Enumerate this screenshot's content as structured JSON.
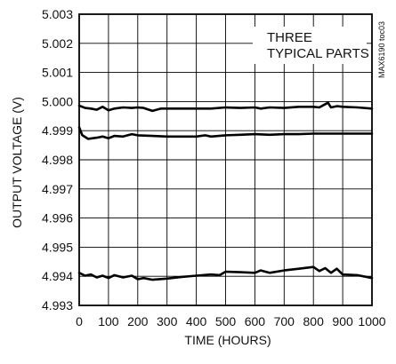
{
  "chart_data": {
    "type": "line",
    "title": "",
    "xlabel": "TIME (HOURS)",
    "ylabel": "OUTPUT VOLTAGE (V)",
    "xlim": [
      0,
      1000
    ],
    "ylim": [
      4.993,
      5.003
    ],
    "x_ticks": [
      0,
      100,
      200,
      300,
      400,
      500,
      600,
      700,
      800,
      900,
      1000
    ],
    "y_ticks": [
      4.993,
      4.994,
      4.995,
      4.996,
      4.997,
      4.998,
      4.999,
      5.0,
      5.001,
      5.002,
      5.003
    ],
    "x_tick_labels": [
      "0",
      "100",
      "200",
      "300",
      "400",
      "500",
      "600",
      "700",
      "800",
      "900",
      "1000"
    ],
    "y_tick_labels": [
      "4.993",
      "4.994",
      "4.995",
      "4.996",
      "4.997",
      "4.998",
      "4.999",
      "5.000",
      "5.001",
      "5.002",
      "5.003"
    ],
    "grid": true,
    "annotation": [
      "THREE",
      "TYPICAL PARTS"
    ],
    "figure_code": "MAX6190 toc03",
    "series": [
      {
        "x": [
          0,
          20,
          40,
          60,
          80,
          100,
          120,
          150,
          180,
          200,
          220,
          250,
          280,
          300,
          350,
          400,
          450,
          500,
          550,
          600,
          620,
          650,
          700,
          750,
          800,
          820,
          850,
          860,
          880,
          900,
          950,
          1000
        ],
        "values": [
          4.99986,
          4.99978,
          4.99976,
          4.99972,
          4.99982,
          4.9997,
          4.99976,
          4.9998,
          4.99978,
          4.9998,
          4.99978,
          4.99968,
          4.99976,
          4.99976,
          4.99976,
          4.99976,
          4.99976,
          4.9998,
          4.99978,
          4.9998,
          4.99976,
          4.9998,
          4.99978,
          4.99982,
          4.99982,
          4.9998,
          4.99996,
          4.9998,
          4.99984,
          4.99982,
          4.9998,
          4.99976
        ]
      },
      {
        "x": [
          0,
          10,
          30,
          60,
          80,
          100,
          120,
          150,
          180,
          200,
          250,
          300,
          350,
          400,
          430,
          450,
          500,
          550,
          600,
          650,
          700,
          750,
          800,
          850,
          900,
          950,
          1000
        ],
        "values": [
          4.99912,
          4.99885,
          4.99872,
          4.99876,
          4.9988,
          4.99874,
          4.99882,
          4.9988,
          4.99888,
          4.99884,
          4.99882,
          4.9988,
          4.9988,
          4.9988,
          4.99884,
          4.9988,
          4.99884,
          4.99886,
          4.99888,
          4.99886,
          4.99888,
          4.99888,
          4.9989,
          4.9989,
          4.9989,
          4.9989,
          4.9989
        ]
      },
      {
        "x": [
          0,
          20,
          40,
          60,
          80,
          100,
          120,
          150,
          180,
          200,
          220,
          250,
          300,
          350,
          400,
          450,
          480,
          500,
          550,
          600,
          620,
          650,
          700,
          750,
          800,
          820,
          840,
          860,
          880,
          900,
          950,
          1000
        ],
        "values": [
          4.99412,
          4.99402,
          4.99406,
          4.99396,
          4.99402,
          4.99394,
          4.99404,
          4.99396,
          4.99402,
          4.9939,
          4.99394,
          4.99388,
          4.99392,
          4.99398,
          4.99402,
          4.99406,
          4.99404,
          4.99416,
          4.99414,
          4.99412,
          4.9942,
          4.99412,
          4.9942,
          4.99426,
          4.99432,
          4.99418,
          4.99428,
          4.99412,
          4.99426,
          4.99406,
          4.99404,
          4.99394
        ]
      }
    ]
  }
}
